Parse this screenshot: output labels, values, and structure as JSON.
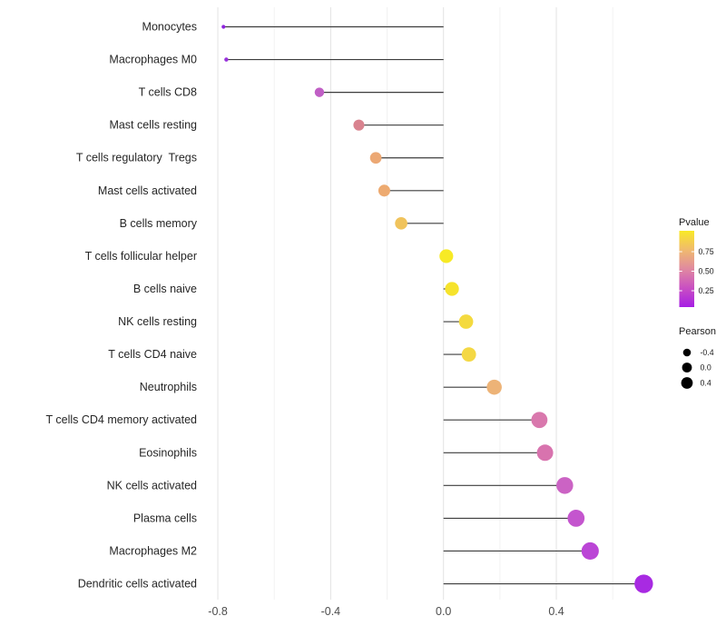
{
  "chart_data": {
    "type": "lollipop",
    "orientation": "horizontal",
    "title": "",
    "xlabel": "",
    "ylabel": "",
    "value_name": "Pearson",
    "color_name": "Pvalue",
    "x_axis": {
      "tick_values": [
        -0.8,
        -0.4,
        0.0,
        0.4
      ],
      "tick_labels": [
        "-0.8",
        "-0.4",
        "0.0",
        "0.4"
      ],
      "minor_tick_values": [
        -0.6,
        -0.2,
        0.2,
        0.6
      ],
      "range": [
        -0.85,
        0.78
      ]
    },
    "grid": {
      "vertical": true,
      "horizontal": false
    },
    "rows": [
      {
        "label": "Monocytes",
        "pearson": -0.78,
        "color": "#8F24DE"
      },
      {
        "label": "Macrophages M0",
        "pearson": -0.77,
        "color": "#9932DC"
      },
      {
        "label": "T cells CD8",
        "pearson": -0.44,
        "color": "#C05FC5"
      },
      {
        "label": "Mast cells resting",
        "pearson": -0.3,
        "color": "#D9838F"
      },
      {
        "label": "T cells regulatory  Tregs",
        "pearson": -0.24,
        "color": "#ECA874"
      },
      {
        "label": "Mast cells activated",
        "pearson": -0.21,
        "color": "#EDAA70"
      },
      {
        "label": "B cells memory",
        "pearson": -0.15,
        "color": "#F0C35C"
      },
      {
        "label": "T cells follicular helper",
        "pearson": 0.01,
        "color": "#F7EA25"
      },
      {
        "label": "B cells naive",
        "pearson": 0.03,
        "color": "#F6E32C"
      },
      {
        "label": "NK cells resting",
        "pearson": 0.08,
        "color": "#F4DA3F"
      },
      {
        "label": "T cells CD4 naive",
        "pearson": 0.09,
        "color": "#F4D844"
      },
      {
        "label": "Neutrophils",
        "pearson": 0.18,
        "color": "#EDB377"
      },
      {
        "label": "T cells CD4 memory activated",
        "pearson": 0.34,
        "color": "#D978AD"
      },
      {
        "label": "Eosinophils",
        "pearson": 0.36,
        "color": "#D873AE"
      },
      {
        "label": "NK cells activated",
        "pearson": 0.43,
        "color": "#CB63C4"
      },
      {
        "label": "Plasma cells",
        "pearson": 0.47,
        "color": "#C455CE"
      },
      {
        "label": "Macrophages M2",
        "pearson": 0.52,
        "color": "#BB45D6"
      },
      {
        "label": "Dendritic cells activated",
        "pearson": 0.71,
        "color": "#A82AE2"
      }
    ],
    "legend": {
      "pvalue": {
        "title": "Pvalue",
        "tick_labels": [
          "0.75",
          "0.50",
          "0.25"
        ],
        "gradient_stops_bottom_to_top": [
          "#A61EE4",
          "#C94FC2",
          "#E089A0",
          "#F0BA6E",
          "#F9E926"
        ]
      },
      "pearson": {
        "title": "Pearson",
        "items": [
          {
            "label": "-0.4",
            "value": -0.4
          },
          {
            "label": "0.0",
            "value": 0.0
          },
          {
            "label": "0.4",
            "value": 0.4
          }
        ]
      }
    },
    "style_colors": {
      "grid_major": "#e3e3e3",
      "grid_minor": "#f2f2f2",
      "stem": "#3d3d3d",
      "axis_text": "#4d4d4d",
      "label_text": "#262626",
      "legend_text": "#1a1a1a",
      "legend_dot": "#000000"
    }
  }
}
